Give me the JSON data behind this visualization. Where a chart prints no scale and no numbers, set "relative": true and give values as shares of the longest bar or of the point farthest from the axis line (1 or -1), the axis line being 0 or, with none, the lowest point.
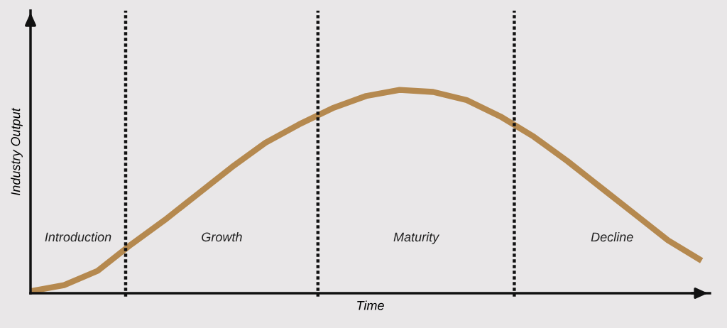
{
  "chart_data": {
    "type": "line",
    "relative": true,
    "xlabel": "Time",
    "ylabel": "Industry Output",
    "categories": [
      null,
      null,
      null,
      null,
      null,
      null,
      null,
      null,
      null,
      null,
      null,
      null,
      null,
      null,
      null,
      null,
      null,
      null,
      null,
      null,
      null
    ],
    "series": [
      {
        "color": "#b5894f",
        "values": [
          0.01,
          0.04,
          0.11,
          0.24,
          0.36,
          0.49,
          0.62,
          0.74,
          0.83,
          0.91,
          0.97,
          1.0,
          0.99,
          0.95,
          0.87,
          0.77,
          0.65,
          0.52,
          0.39,
          0.26,
          0.16
        ]
      }
    ],
    "annotations": [
      "Introduction",
      "Growth",
      "Maturity",
      "Decline"
    ],
    "grid": false,
    "marker": "none",
    "line_style": "solid"
  }
}
